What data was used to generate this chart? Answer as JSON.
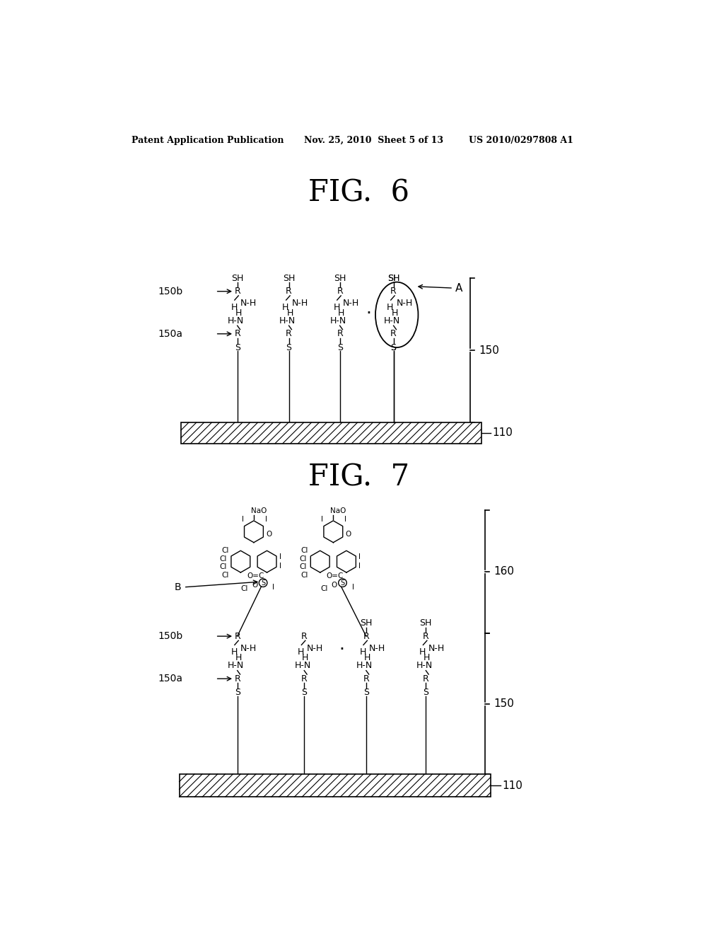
{
  "bg_color": "#ffffff",
  "header_left": "Patent Application Publication",
  "header_mid": "Nov. 25, 2010  Sheet 5 of 13",
  "header_right": "US 2010/0297808 A1",
  "fig6_title": "FIG.  6",
  "fig7_title": "FIG.  7",
  "fig6_label_150b": "150b",
  "fig6_label_150a": "150a",
  "fig6_label_150": "150",
  "fig6_label_110": "110",
  "fig6_label_A": "A",
  "fig7_label_150b": "150b",
  "fig7_label_150a": "150a",
  "fig7_label_150": "150",
  "fig7_label_110": "110",
  "fig7_label_160": "160",
  "fig7_label_B": "B"
}
